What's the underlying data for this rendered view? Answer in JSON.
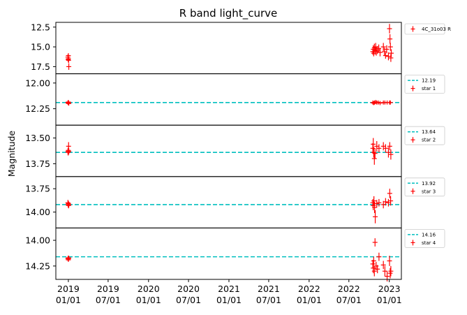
{
  "chart_data": {
    "type": "scatter",
    "title": "R band light_curve",
    "ylabel": "Magnitude",
    "xlabel": "",
    "grid": false,
    "x_ticks": [
      "2019-01-01",
      "2019-07-01",
      "2020-01-01",
      "2020-07-01",
      "2021-01-01",
      "2021-07-01",
      "2022-01-01",
      "2022-07-01",
      "2023-01-01"
    ],
    "x_tick_labels": [
      [
        "2019",
        "01/01"
      ],
      [
        "2019",
        "07/01"
      ],
      [
        "2020",
        "01/01"
      ],
      [
        "2020",
        "07/01"
      ],
      [
        "2021",
        "01/01"
      ],
      [
        "2021",
        "07/01"
      ],
      [
        "2022",
        "01/01"
      ],
      [
        "2022",
        "07/01"
      ],
      [
        "2023",
        "01/01"
      ]
    ],
    "xlim": [
      "2018-11-05",
      "2023-02-25"
    ],
    "panels": [
      {
        "ylim": [
          18.4,
          11.9
        ],
        "invert_y": true,
        "y_ticks": [
          12.5,
          15.0,
          17.5
        ],
        "y_tick_labels": [
          "12.5",
          "15.0",
          "17.5"
        ],
        "legend": [
          {
            "label": "4C_31o03 R",
            "kind": "errorbar",
            "color": "#ff0000"
          }
        ],
        "series": [
          {
            "name": "4C_31o03 R",
            "color": "#ff0000",
            "marker": "+",
            "points": [
              {
                "x": "2018-12-30",
                "y": 16.3,
                "err": 0.35
              },
              {
                "x": "2018-12-31",
                "y": 16.6,
                "err": 0.3
              },
              {
                "x": "2019-01-01",
                "y": 16.1,
                "err": 0.3
              },
              {
                "x": "2019-01-02",
                "y": 16.7,
                "err": 0.35
              },
              {
                "x": "2019-01-03",
                "y": 17.5,
                "err": 0.4
              },
              {
                "x": "2019-01-01",
                "y": 16.5,
                "err": 0.3
              },
              {
                "x": "2022-10-18",
                "y": 15.6,
                "err": 0.4
              },
              {
                "x": "2022-10-20",
                "y": 15.3,
                "err": 0.5
              },
              {
                "x": "2022-10-22",
                "y": 15.8,
                "err": 0.4
              },
              {
                "x": "2022-10-25",
                "y": 15.1,
                "err": 0.5
              },
              {
                "x": "2022-10-28",
                "y": 15.5,
                "err": 0.5
              },
              {
                "x": "2022-10-31",
                "y": 15.0,
                "err": 0.5
              },
              {
                "x": "2022-11-03",
                "y": 15.6,
                "err": 0.5
              },
              {
                "x": "2022-11-08",
                "y": 15.4,
                "err": 0.5
              },
              {
                "x": "2022-11-14",
                "y": 15.2,
                "err": 0.5
              },
              {
                "x": "2022-11-20",
                "y": 15.7,
                "err": 0.5
              },
              {
                "x": "2022-12-05",
                "y": 15.0,
                "err": 0.5
              },
              {
                "x": "2022-12-10",
                "y": 15.6,
                "err": 0.5
              },
              {
                "x": "2022-12-15",
                "y": 16.1,
                "err": 0.4
              },
              {
                "x": "2022-12-20",
                "y": 15.3,
                "err": 0.5
              },
              {
                "x": "2022-12-28",
                "y": 16.2,
                "err": 0.5
              },
              {
                "x": "2023-01-02",
                "y": 12.7,
                "err": 0.6
              },
              {
                "x": "2023-01-04",
                "y": 14.0,
                "err": 0.6
              },
              {
                "x": "2023-01-06",
                "y": 15.0,
                "err": 0.5
              },
              {
                "x": "2023-01-08",
                "y": 16.4,
                "err": 0.5
              },
              {
                "x": "2023-01-10",
                "y": 15.8,
                "err": 0.5
              }
            ]
          }
        ]
      },
      {
        "ylim": [
          12.41,
          11.91
        ],
        "invert_y": true,
        "y_ticks": [
          12.0,
          12.25
        ],
        "y_tick_labels": [
          "12.00",
          "12.25"
        ],
        "ref_line": 12.19,
        "legend": [
          {
            "label": "12.19",
            "kind": "dashed",
            "color": "#00bfbf"
          },
          {
            "label": "star 1",
            "kind": "errorbar",
            "color": "#ff0000"
          }
        ],
        "series": [
          {
            "name": "star 1",
            "color": "#ff0000",
            "marker": "+",
            "points": [
              {
                "x": "2018-12-30",
                "y": 12.19,
                "err": 0.02
              },
              {
                "x": "2018-12-31",
                "y": 12.195,
                "err": 0.02
              },
              {
                "x": "2019-01-01",
                "y": 12.185,
                "err": 0.02
              },
              {
                "x": "2019-01-02",
                "y": 12.19,
                "err": 0.02
              },
              {
                "x": "2019-01-03",
                "y": 12.2,
                "err": 0.02
              },
              {
                "x": "2022-10-18",
                "y": 12.19,
                "err": 0.02
              },
              {
                "x": "2022-10-22",
                "y": 12.195,
                "err": 0.02
              },
              {
                "x": "2022-10-26",
                "y": 12.19,
                "err": 0.02
              },
              {
                "x": "2022-10-31",
                "y": 12.185,
                "err": 0.02
              },
              {
                "x": "2022-11-05",
                "y": 12.19,
                "err": 0.02
              },
              {
                "x": "2022-11-12",
                "y": 12.19,
                "err": 0.02
              },
              {
                "x": "2022-11-20",
                "y": 12.195,
                "err": 0.02
              },
              {
                "x": "2022-12-05",
                "y": 12.19,
                "err": 0.02
              },
              {
                "x": "2022-12-12",
                "y": 12.19,
                "err": 0.02
              },
              {
                "x": "2022-12-22",
                "y": 12.19,
                "err": 0.02
              },
              {
                "x": "2023-01-02",
                "y": 12.19,
                "err": 0.02
              },
              {
                "x": "2023-01-06",
                "y": 12.19,
                "err": 0.02
              }
            ]
          }
        ]
      },
      {
        "ylim": [
          13.875,
          13.375
        ],
        "invert_y": true,
        "y_ticks": [
          13.5,
          13.75
        ],
        "y_tick_labels": [
          "13.50",
          "13.75"
        ],
        "ref_line": 13.64,
        "legend": [
          {
            "label": "13.64",
            "kind": "dashed",
            "color": "#00bfbf"
          },
          {
            "label": "star 2",
            "kind": "errorbar",
            "color": "#ff0000"
          }
        ],
        "series": [
          {
            "name": "star 2",
            "color": "#ff0000",
            "marker": "+",
            "points": [
              {
                "x": "2018-12-30",
                "y": 13.63,
                "err": 0.03
              },
              {
                "x": "2018-12-31",
                "y": 13.64,
                "err": 0.03
              },
              {
                "x": "2019-01-01",
                "y": 13.62,
                "err": 0.03
              },
              {
                "x": "2019-01-02",
                "y": 13.58,
                "err": 0.04
              },
              {
                "x": "2019-01-03",
                "y": 13.63,
                "err": 0.03
              },
              {
                "x": "2022-10-18",
                "y": 13.6,
                "err": 0.05
              },
              {
                "x": "2022-10-20",
                "y": 13.56,
                "err": 0.06
              },
              {
                "x": "2022-10-22",
                "y": 13.64,
                "err": 0.05
              },
              {
                "x": "2022-10-25",
                "y": 13.7,
                "err": 0.06
              },
              {
                "x": "2022-10-28",
                "y": 13.65,
                "err": 0.05
              },
              {
                "x": "2022-11-05",
                "y": 13.58,
                "err": 0.05
              },
              {
                "x": "2022-11-15",
                "y": 13.6,
                "err": 0.04
              },
              {
                "x": "2022-12-05",
                "y": 13.58,
                "err": 0.04
              },
              {
                "x": "2022-12-15",
                "y": 13.6,
                "err": 0.04
              },
              {
                "x": "2022-12-28",
                "y": 13.64,
                "err": 0.05
              },
              {
                "x": "2023-01-03",
                "y": 13.58,
                "err": 0.04
              },
              {
                "x": "2023-01-08",
                "y": 13.66,
                "err": 0.05
              }
            ]
          }
        ]
      },
      {
        "ylim": [
          14.17,
          13.62
        ],
        "invert_y": true,
        "y_ticks": [
          13.75,
          14.0
        ],
        "y_tick_labels": [
          "13.75",
          "14.00"
        ],
        "ref_line": 13.92,
        "legend": [
          {
            "label": "13.92",
            "kind": "dashed",
            "color": "#00bfbf"
          },
          {
            "label": "star 3",
            "kind": "errorbar",
            "color": "#ff0000"
          }
        ],
        "series": [
          {
            "name": "star 3",
            "color": "#ff0000",
            "marker": "+",
            "points": [
              {
                "x": "2018-12-30",
                "y": 13.9,
                "err": 0.03
              },
              {
                "x": "2018-12-31",
                "y": 13.92,
                "err": 0.03
              },
              {
                "x": "2019-01-01",
                "y": 13.91,
                "err": 0.03
              },
              {
                "x": "2019-01-02",
                "y": 13.93,
                "err": 0.03
              },
              {
                "x": "2019-01-03",
                "y": 13.92,
                "err": 0.03
              },
              {
                "x": "2022-10-18",
                "y": 13.9,
                "err": 0.04
              },
              {
                "x": "2022-10-20",
                "y": 13.93,
                "err": 0.05
              },
              {
                "x": "2022-10-23",
                "y": 13.88,
                "err": 0.05
              },
              {
                "x": "2022-10-26",
                "y": 13.95,
                "err": 0.06
              },
              {
                "x": "2022-10-29",
                "y": 14.05,
                "err": 0.07
              },
              {
                "x": "2022-11-05",
                "y": 13.91,
                "err": 0.04
              },
              {
                "x": "2022-11-15",
                "y": 13.9,
                "err": 0.04
              },
              {
                "x": "2022-12-05",
                "y": 13.92,
                "err": 0.04
              },
              {
                "x": "2022-12-15",
                "y": 13.89,
                "err": 0.04
              },
              {
                "x": "2022-12-28",
                "y": 13.9,
                "err": 0.04
              },
              {
                "x": "2023-01-03",
                "y": 13.8,
                "err": 0.05
              },
              {
                "x": "2023-01-07",
                "y": 13.88,
                "err": 0.05
              }
            ]
          }
        ]
      },
      {
        "ylim": [
          14.38,
          13.88
        ],
        "invert_y": true,
        "y_ticks": [
          14.0,
          14.25
        ],
        "y_tick_labels": [
          "14.00",
          "14.25"
        ],
        "ref_line": 14.16,
        "legend": [
          {
            "label": "14.16",
            "kind": "dashed",
            "color": "#00bfbf"
          },
          {
            "label": "star 4",
            "kind": "errorbar",
            "color": "#ff0000"
          }
        ],
        "series": [
          {
            "name": "star 4",
            "color": "#ff0000",
            "marker": "+",
            "points": [
              {
                "x": "2018-12-30",
                "y": 14.18,
                "err": 0.02
              },
              {
                "x": "2018-12-31",
                "y": 14.17,
                "err": 0.02
              },
              {
                "x": "2019-01-01",
                "y": 14.19,
                "err": 0.02
              },
              {
                "x": "2019-01-02",
                "y": 14.18,
                "err": 0.02
              },
              {
                "x": "2019-01-03",
                "y": 14.17,
                "err": 0.02
              },
              {
                "x": "2022-10-18",
                "y": 14.23,
                "err": 0.04
              },
              {
                "x": "2022-10-20",
                "y": 14.27,
                "err": 0.05
              },
              {
                "x": "2022-10-22",
                "y": 14.2,
                "err": 0.04
              },
              {
                "x": "2022-10-25",
                "y": 14.3,
                "err": 0.05
              },
              {
                "x": "2022-10-28",
                "y": 14.02,
                "err": 0.04
              },
              {
                "x": "2022-11-02",
                "y": 14.25,
                "err": 0.04
              },
              {
                "x": "2022-11-08",
                "y": 14.28,
                "err": 0.04
              },
              {
                "x": "2022-11-15",
                "y": 14.16,
                "err": 0.04
              },
              {
                "x": "2022-12-05",
                "y": 14.24,
                "err": 0.04
              },
              {
                "x": "2022-12-12",
                "y": 14.3,
                "err": 0.05
              },
              {
                "x": "2022-12-22",
                "y": 14.35,
                "err": 0.05
              },
              {
                "x": "2023-01-02",
                "y": 14.2,
                "err": 0.05
              },
              {
                "x": "2023-01-05",
                "y": 14.32,
                "err": 0.05
              },
              {
                "x": "2023-01-08",
                "y": 14.3,
                "err": 0.05
              }
            ]
          }
        ]
      }
    ]
  }
}
